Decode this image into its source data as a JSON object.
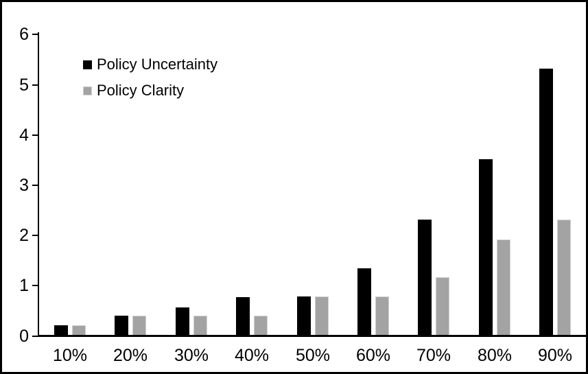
{
  "chart_data": {
    "type": "bar",
    "title": "",
    "xlabel": "",
    "ylabel": "",
    "categories": [
      "10%",
      "20%",
      "30%",
      "40%",
      "50%",
      "60%",
      "70%",
      "80%",
      "90%"
    ],
    "series": [
      {
        "name": "Policy Uncertainty",
        "color": "#000000",
        "edge_color": "#000000",
        "values": [
          0.19,
          0.38,
          0.55,
          0.75,
          0.77,
          1.33,
          2.3,
          3.5,
          5.3
        ]
      },
      {
        "name": "Policy Clarity",
        "color": "#a3a3a3",
        "edge_color": "#d0d0d0",
        "values": [
          0.19,
          0.38,
          0.38,
          0.38,
          0.77,
          0.77,
          1.15,
          1.9,
          2.3
        ]
      }
    ],
    "y_ticks": [
      "0",
      "1",
      "2",
      "3",
      "4",
      "5",
      "6"
    ],
    "ylim": [
      0,
      6
    ],
    "grid": false,
    "legend_position": "top-left-inside",
    "frame_color": "#000000",
    "background_color": "#ffffff"
  }
}
